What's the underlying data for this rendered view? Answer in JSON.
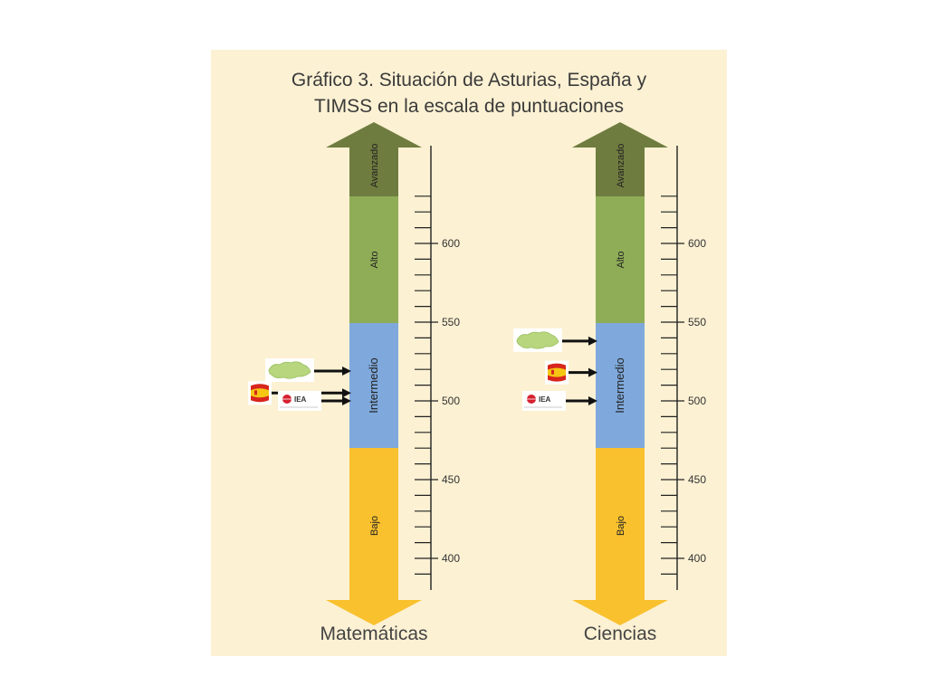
{
  "colors": {
    "background": "#fcf1d3",
    "avanzado": "#6f7c3f",
    "alto": "#8fad57",
    "intermedio": "#7fa9dc",
    "bajo": "#f9c12e",
    "axis": "#222222",
    "arrow": "#111111",
    "asturias_map": "#b7d67e",
    "spain_flag_red": "#d7261e",
    "spain_flag_yellow": "#f6c614",
    "iea_red": "#d52030"
  },
  "chart_data": {
    "type": "scale-diagram",
    "title_lines": [
      "Gráfico 3. Situación de Asturias, España y",
      "TIMSS en la escala de puntuaciones"
    ],
    "scale": {
      "ylim": [
        380,
        650
      ],
      "major_ticks": [
        400,
        450,
        500,
        550,
        600
      ],
      "minor_step": 10,
      "min_label": 400,
      "max_label": 600
    },
    "bands": [
      {
        "label": "Bajo",
        "from": 380,
        "to": 470,
        "color": "#f9c12e"
      },
      {
        "label": "Intermedio",
        "from": 470,
        "to": 550,
        "color": "#7fa9dc"
      },
      {
        "label": "Alto",
        "from": 550,
        "to": 630,
        "color": "#8fad57"
      },
      {
        "label": "Avanzado",
        "from": 630,
        "to": 650,
        "color": "#6f7c3f"
      }
    ],
    "panels": [
      {
        "name": "Matemáticas",
        "markers": [
          {
            "entity": "asturias",
            "icon": "asturias-map-icon",
            "value": 519
          },
          {
            "entity": "spain",
            "icon": "spain-flag-icon",
            "value": 505
          },
          {
            "entity": "timss",
            "icon": "iea-logo-icon",
            "value": 500
          }
        ]
      },
      {
        "name": "Ciencias",
        "markers": [
          {
            "entity": "asturias",
            "icon": "asturias-map-icon",
            "value": 538
          },
          {
            "entity": "spain",
            "icon": "spain-flag-icon",
            "value": 518
          },
          {
            "entity": "timss",
            "icon": "iea-logo-icon",
            "value": 500
          }
        ]
      }
    ]
  },
  "logos": {
    "iea_text": "IEA"
  }
}
